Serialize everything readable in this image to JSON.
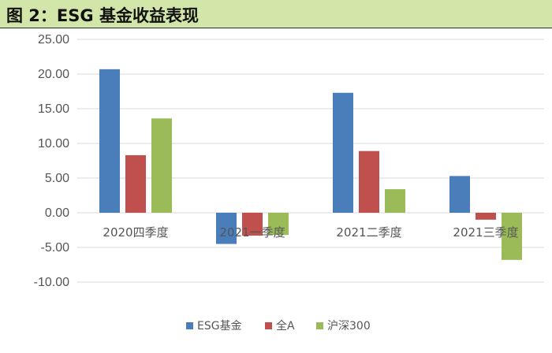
{
  "figure": {
    "title": "图 2：ESG 基金收益表现"
  },
  "chart_data": {
    "type": "bar",
    "title": "",
    "xlabel": "",
    "ylabel": "",
    "categories": [
      "2020四季度",
      "2021一季度",
      "2021二季度",
      "2021三季度"
    ],
    "series": [
      {
        "name": "ESG基金",
        "color": "#4a7ebb",
        "values": [
          20.7,
          -4.5,
          17.3,
          5.3
        ]
      },
      {
        "name": "全A",
        "color": "#c0504d",
        "values": [
          8.3,
          -3.3,
          8.9,
          -1.0
        ]
      },
      {
        "name": "沪深300",
        "color": "#9bbb59",
        "values": [
          13.6,
          -3.2,
          3.4,
          -6.8
        ]
      }
    ],
    "ylim": [
      -10,
      25
    ],
    "yticks": [
      "25.00",
      "20.00",
      "15.00",
      "10.00",
      "5.00",
      "0.00",
      "-5.00",
      "-10.00"
    ],
    "ytick_values": [
      25,
      20,
      15,
      10,
      5,
      0,
      -5,
      -10
    ],
    "grid": true,
    "legend_position": "bottom"
  }
}
